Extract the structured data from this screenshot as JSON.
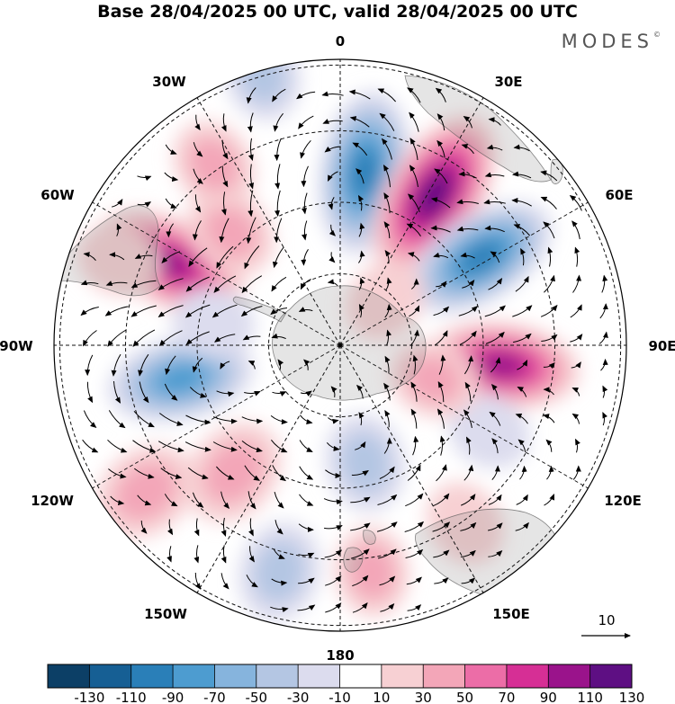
{
  "title": "Base 28/04/2025 00 UTC, valid 28/04/2025 00 UTC",
  "brand": "MODES",
  "brand_mark": "©",
  "longitude_labels": {
    "lon_0": "0",
    "lon_30e": "30E",
    "lon_60e": "60E",
    "lon_90e": "90E",
    "lon_120e": "120E",
    "lon_150e": "150E",
    "lon_180": "180",
    "lon_150w": "150W",
    "lon_120w": "120W",
    "lon_90w": "90W",
    "lon_60w": "60W",
    "lon_30w": "30W"
  },
  "reference_vector_label": "10",
  "colorbar": {
    "colors": [
      "#0c3f66",
      "#165f94",
      "#2a7fb8",
      "#4d9cd0",
      "#86b4dd",
      "#b4c6e3",
      "#dcdcee",
      "#ffffff",
      "#f7d0d3",
      "#f3a6b8",
      "#ec6da7",
      "#d62f95",
      "#9a138b",
      "#5e0f83"
    ],
    "tick_labels": [
      "-130",
      "-110",
      "-90",
      "-70",
      "-50",
      "-30",
      "-10",
      "10",
      "30",
      "50",
      "70",
      "90",
      "110",
      "130"
    ]
  },
  "anomaly_centers": [
    {
      "lon": 8,
      "r": 0.61,
      "value": -105
    },
    {
      "lon": 32,
      "r": 0.62,
      "value": 118
    },
    {
      "lon": 58,
      "r": 0.58,
      "value": -98
    },
    {
      "lon": 97,
      "r": 0.57,
      "value": 96
    },
    {
      "lon": -102,
      "r": 0.57,
      "value": -88
    },
    {
      "lon": -64,
      "r": 0.66,
      "value": 100
    },
    {
      "lon": -44,
      "r": 0.55,
      "value": 34
    },
    {
      "lon": -35,
      "r": 0.77,
      "value": 32
    },
    {
      "lon": -69,
      "r": 0.83,
      "value": 22
    },
    {
      "lon": -140,
      "r": 0.58,
      "value": 48
    },
    {
      "lon": -127,
      "r": 0.85,
      "value": 46
    },
    {
      "lon": 168,
      "r": 0.42,
      "value": -38
    },
    {
      "lon": -165,
      "r": 0.82,
      "value": -40
    },
    {
      "lon": 172,
      "r": 0.8,
      "value": 30
    },
    {
      "lon": 145,
      "r": 0.76,
      "value": 26
    },
    {
      "lon": 120,
      "r": 0.6,
      "value": -24
    },
    {
      "lon": 110,
      "r": 0.35,
      "value": 30
    },
    {
      "lon": 45,
      "r": 0.22,
      "value": 24
    },
    {
      "lon": -16,
      "r": 0.98,
      "value": -30
    },
    {
      "lon": -80,
      "r": 0.45,
      "value": -22
    }
  ]
}
